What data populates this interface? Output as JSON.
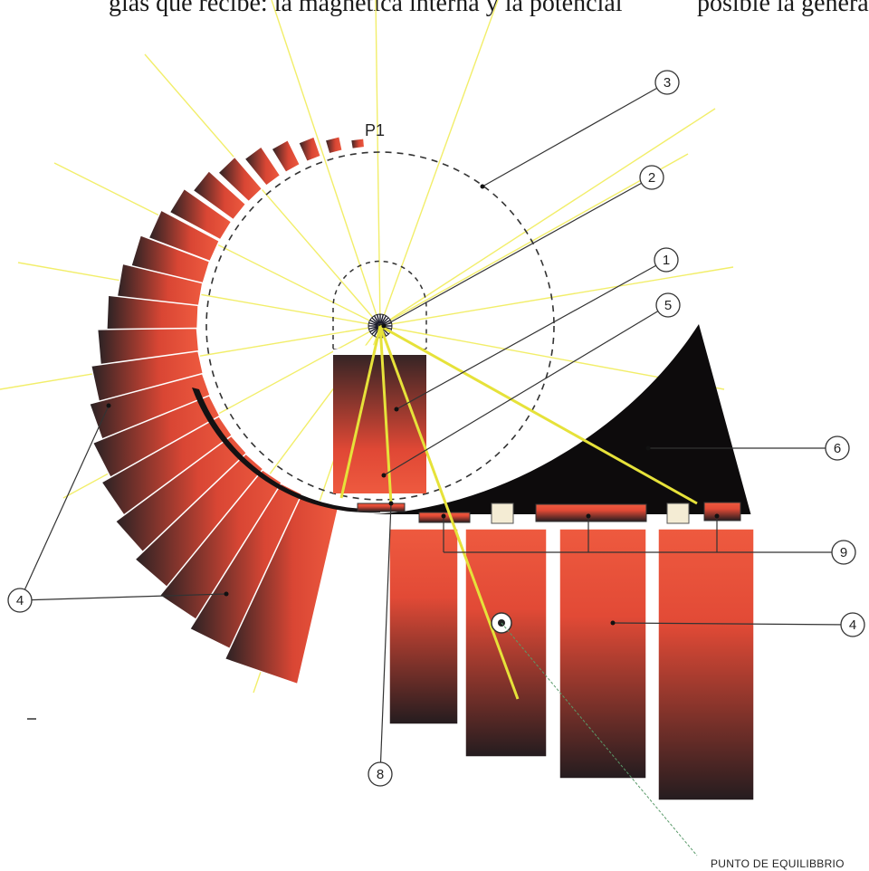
{
  "header": {
    "left_text": "gías que recibe: la magnética interna y la potencial",
    "right_text": "posible la genera"
  },
  "diagram": {
    "pivot_label": "P1",
    "equilibrium_label": "PUNTO DE EQUILIBBRIO",
    "callouts": [
      "3",
      "2",
      "1",
      "5",
      "6",
      "9",
      "4",
      "4",
      "8"
    ],
    "colors": {
      "magnet_red": "#e8513a",
      "magnet_dark": "#2a2224",
      "ray": "#f2ee6a",
      "ray_bright": "#e4e02a",
      "wedge": "#0d0b0c"
    }
  }
}
